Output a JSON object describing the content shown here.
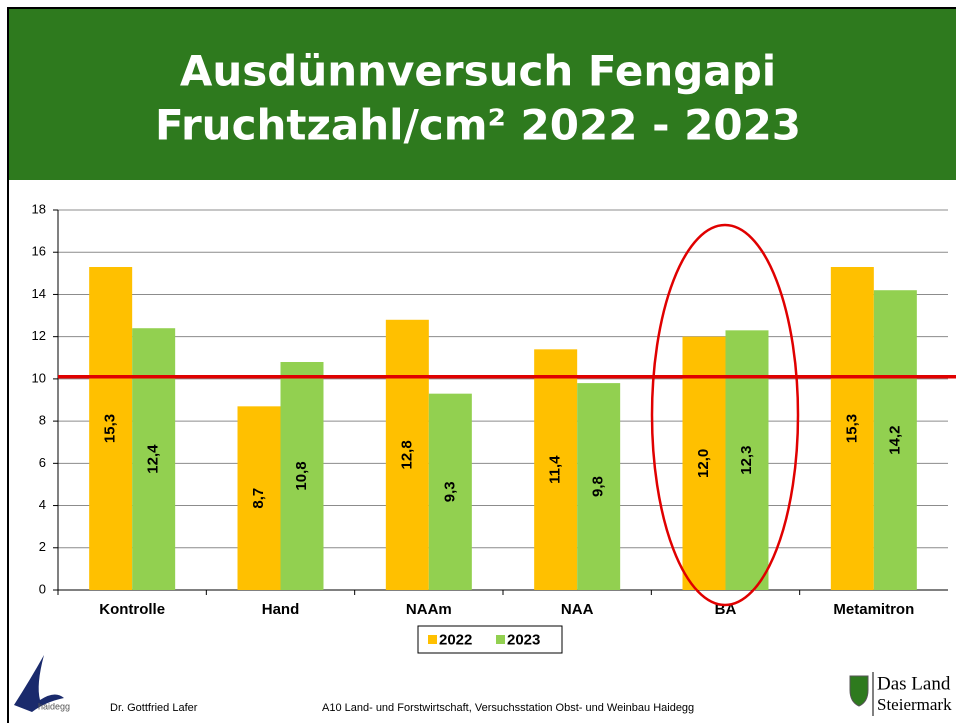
{
  "chart_data": {
    "type": "bar",
    "title": "Ausdünnversuch Fengapi",
    "subtitle": "Fruchtzahl/cm² 2022 - 2023",
    "categories": [
      "Kontrolle",
      "Hand",
      "NAAm",
      "NAA",
      "BA",
      "Metamitron"
    ],
    "series": [
      {
        "name": "2022",
        "color": "#ffc000",
        "values": [
          15.3,
          8.7,
          12.8,
          11.4,
          12.0,
          15.3
        ],
        "value_labels": [
          "15,3",
          "8,7",
          "12,8",
          "11,4",
          "12,0",
          "15,3"
        ]
      },
      {
        "name": "2023",
        "color": "#92d050",
        "values": [
          12.4,
          10.8,
          9.3,
          9.8,
          12.3,
          14.2
        ],
        "value_labels": [
          "12,4",
          "10,8",
          "9,3",
          "9,8",
          "12,3",
          "14,2"
        ]
      }
    ],
    "ylim": [
      0,
      18
    ],
    "yticks": [
      0,
      2,
      4,
      6,
      8,
      10,
      12,
      14,
      16,
      18
    ],
    "grid": true,
    "reference_line": {
      "value": 10.1,
      "color": "#e00000"
    },
    "legend": "bottom"
  },
  "footer": {
    "logo": "haidegg",
    "author": "Dr. Gottfried Lafer",
    "institution": "A10 Land- und Forstwirtschaft, Versuchsstation Obst- und Weinbau Haidegg",
    "brand_line1": "Das Land",
    "brand_line2": "Steiermark"
  }
}
